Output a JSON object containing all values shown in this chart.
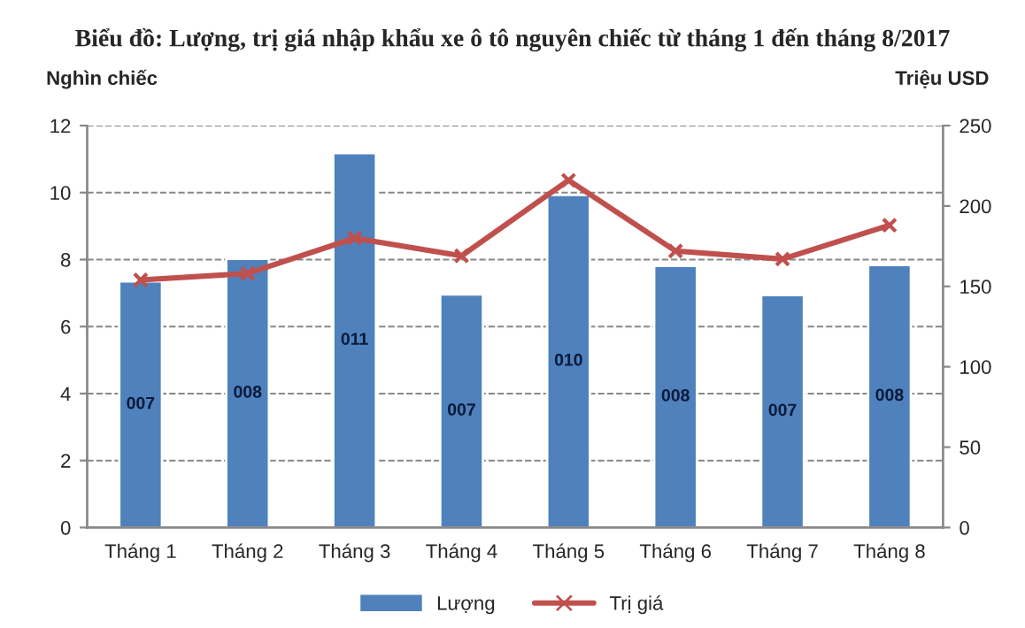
{
  "chart_data": {
    "type": "bar",
    "title": "Biểu đồ: Lượng, trị giá nhập khẩu xe ô tô nguyên chiếc từ tháng 1 đến tháng 8/2017",
    "ylabel": "Nghìn chiếc",
    "y2label": "Triệu USD",
    "categories": [
      "Tháng 1",
      "Tháng 2",
      "Tháng 3",
      "Tháng 4",
      "Tháng 5",
      "Tháng 6",
      "Tháng 7",
      "Tháng 8"
    ],
    "series": [
      {
        "name": "Lượng",
        "color": "#4f81bd",
        "values": [
          7.35,
          8.02,
          11.18,
          6.96,
          9.93,
          7.81,
          6.94,
          7.84
        ],
        "value_labels": [
          "007",
          "008",
          "011",
          "007",
          "010",
          "008",
          "007",
          "008"
        ]
      },
      {
        "name": "Trị giá",
        "type": "line",
        "axis": "y2",
        "color": "#c0504d",
        "marker": "cross",
        "line_style": "solid",
        "values": [
          154,
          158,
          180,
          169,
          216,
          172,
          167,
          188
        ]
      }
    ],
    "ylim": [
      0,
      12
    ],
    "yticks": [
      0,
      2,
      4,
      6,
      8,
      10,
      12
    ],
    "y2lim": [
      0,
      250
    ],
    "y2ticks": [
      0,
      50,
      100,
      150,
      200,
      250
    ],
    "grid": "y",
    "legend": "bottom"
  }
}
